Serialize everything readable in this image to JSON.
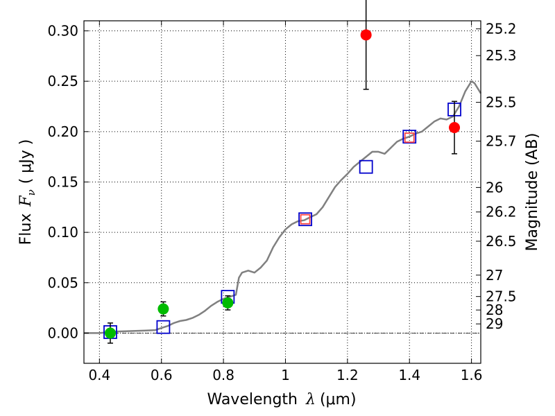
{
  "chart_data": {
    "type": "scatter",
    "title": "",
    "xlabel": {
      "prefix": "Wavelength",
      "symbol": "λ",
      "unit": "(μm)"
    },
    "ylabel": {
      "prefix": "Flux",
      "symbol": "F",
      "subscript": "ν",
      "unit": "( μJy )"
    },
    "y2label": "Magnitude (AB)",
    "xlim": [
      0.35,
      1.63
    ],
    "ylim": [
      -0.03,
      0.31
    ],
    "grid": true,
    "x_ticks": [
      {
        "value": 0.4,
        "label": "0.4"
      },
      {
        "value": 0.6,
        "label": "0.6"
      },
      {
        "value": 0.8,
        "label": "0.8"
      },
      {
        "value": 1.0,
        "label": "1"
      },
      {
        "value": 1.2,
        "label": "1.2"
      },
      {
        "value": 1.4,
        "label": "1.4"
      },
      {
        "value": 1.6,
        "label": "1.6"
      }
    ],
    "y_ticks": [
      {
        "value": 0.0,
        "label": "0.00"
      },
      {
        "value": 0.05,
        "label": "0.05"
      },
      {
        "value": 0.1,
        "label": "0.10"
      },
      {
        "value": 0.15,
        "label": "0.15"
      },
      {
        "value": 0.2,
        "label": "0.20"
      },
      {
        "value": 0.25,
        "label": "0.25"
      },
      {
        "value": 0.3,
        "label": "0.30"
      }
    ],
    "y2_ticks": [
      {
        "value": 25.2,
        "label": "25.2"
      },
      {
        "value": 25.3,
        "label": "25.3"
      },
      {
        "value": 25.5,
        "label": "25.5"
      },
      {
        "value": 25.7,
        "label": "25.7"
      },
      {
        "value": 26,
        "label": "26"
      },
      {
        "value": 26.2,
        "label": "26.2"
      },
      {
        "value": 26.5,
        "label": "26.5"
      },
      {
        "value": 27,
        "label": "27"
      },
      {
        "value": 27.5,
        "label": "27.5"
      },
      {
        "value": 28,
        "label": "28"
      },
      {
        "value": 29,
        "label": "29"
      }
    ],
    "series": [
      {
        "kind": "line",
        "color": "#808080",
        "points": [
          [
            0.35,
            0.0
          ],
          [
            0.4,
            0.0
          ],
          [
            0.45,
            0.0015
          ],
          [
            0.5,
            0.002
          ],
          [
            0.55,
            0.0025
          ],
          [
            0.58,
            0.003
          ],
          [
            0.6,
            0.005
          ],
          [
            0.62,
            0.007
          ],
          [
            0.64,
            0.01
          ],
          [
            0.66,
            0.012
          ],
          [
            0.68,
            0.013
          ],
          [
            0.7,
            0.015
          ],
          [
            0.72,
            0.018
          ],
          [
            0.74,
            0.022
          ],
          [
            0.76,
            0.027
          ],
          [
            0.78,
            0.031
          ],
          [
            0.8,
            0.034
          ],
          [
            0.82,
            0.036
          ],
          [
            0.84,
            0.038
          ],
          [
            0.85,
            0.055
          ],
          [
            0.86,
            0.06
          ],
          [
            0.88,
            0.062
          ],
          [
            0.9,
            0.06
          ],
          [
            0.92,
            0.065
          ],
          [
            0.94,
            0.072
          ],
          [
            0.96,
            0.085
          ],
          [
            0.98,
            0.095
          ],
          [
            1.0,
            0.103
          ],
          [
            1.02,
            0.108
          ],
          [
            1.04,
            0.111
          ],
          [
            1.06,
            0.112
          ],
          [
            1.08,
            0.115
          ],
          [
            1.1,
            0.118
          ],
          [
            1.12,
            0.125
          ],
          [
            1.14,
            0.135
          ],
          [
            1.16,
            0.145
          ],
          [
            1.18,
            0.152
          ],
          [
            1.2,
            0.158
          ],
          [
            1.22,
            0.165
          ],
          [
            1.24,
            0.17
          ],
          [
            1.26,
            0.175
          ],
          [
            1.28,
            0.18
          ],
          [
            1.3,
            0.18
          ],
          [
            1.32,
            0.178
          ],
          [
            1.34,
            0.184
          ],
          [
            1.36,
            0.19
          ],
          [
            1.38,
            0.193
          ],
          [
            1.4,
            0.195
          ],
          [
            1.42,
            0.198
          ],
          [
            1.44,
            0.2
          ],
          [
            1.46,
            0.205
          ],
          [
            1.48,
            0.21
          ],
          [
            1.5,
            0.213
          ],
          [
            1.52,
            0.212
          ],
          [
            1.54,
            0.215
          ],
          [
            1.56,
            0.225
          ],
          [
            1.58,
            0.24
          ],
          [
            1.6,
            0.25
          ],
          [
            1.61,
            0.248
          ],
          [
            1.63,
            0.238
          ]
        ]
      },
      {
        "kind": "points",
        "marker": "square",
        "color": "#0000cc",
        "points": [
          [
            0.435,
            0.001
          ],
          [
            0.606,
            0.006
          ],
          [
            0.814,
            0.036
          ],
          [
            1.064,
            0.113
          ],
          [
            1.26,
            0.165
          ],
          [
            1.4,
            0.195
          ],
          [
            1.545,
            0.222
          ]
        ]
      },
      {
        "kind": "points",
        "marker": "square",
        "color": "#ff4444",
        "points": [
          [
            1.064,
            0.113
          ],
          [
            1.4,
            0.194
          ]
        ]
      },
      {
        "kind": "points",
        "marker": "circle",
        "color": "#00bb00",
        "points": [
          [
            0.435,
            0.0
          ],
          [
            0.606,
            0.024
          ],
          [
            0.814,
            0.03
          ]
        ],
        "errors": [
          0.01,
          0.007,
          0.007
        ]
      },
      {
        "kind": "points",
        "marker": "circle",
        "color": "#ff0000",
        "points": [
          [
            1.26,
            0.296
          ],
          [
            1.545,
            0.204
          ]
        ],
        "errors": [
          0.054,
          0.026
        ]
      }
    ]
  }
}
